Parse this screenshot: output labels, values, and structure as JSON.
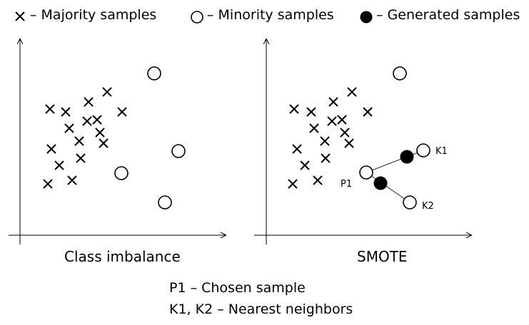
{
  "legend": {
    "majority": {
      "symbol": "×",
      "label": "– Majority samples"
    },
    "minority": {
      "symbol": "○",
      "label": "– Minority samples"
    },
    "generated": {
      "symbol": "●",
      "label": "– Generated samples"
    }
  },
  "panels": {
    "left": {
      "caption": "Class imbalance",
      "majority_count": 16,
      "minority_count": 4
    },
    "right": {
      "caption": "SMOTE",
      "majority_count": 16,
      "minority_count": 4,
      "generated_count": 2,
      "labels": {
        "p1": "P1",
        "k1": "K1",
        "k2": "K2"
      }
    }
  },
  "footnotes": {
    "line1": "P1 – Chosen sample",
    "line2": "K1, K2 – Nearest neighbors"
  },
  "colors": {
    "ink": "#000000",
    "line": "#555555",
    "background": "#ffffff"
  }
}
